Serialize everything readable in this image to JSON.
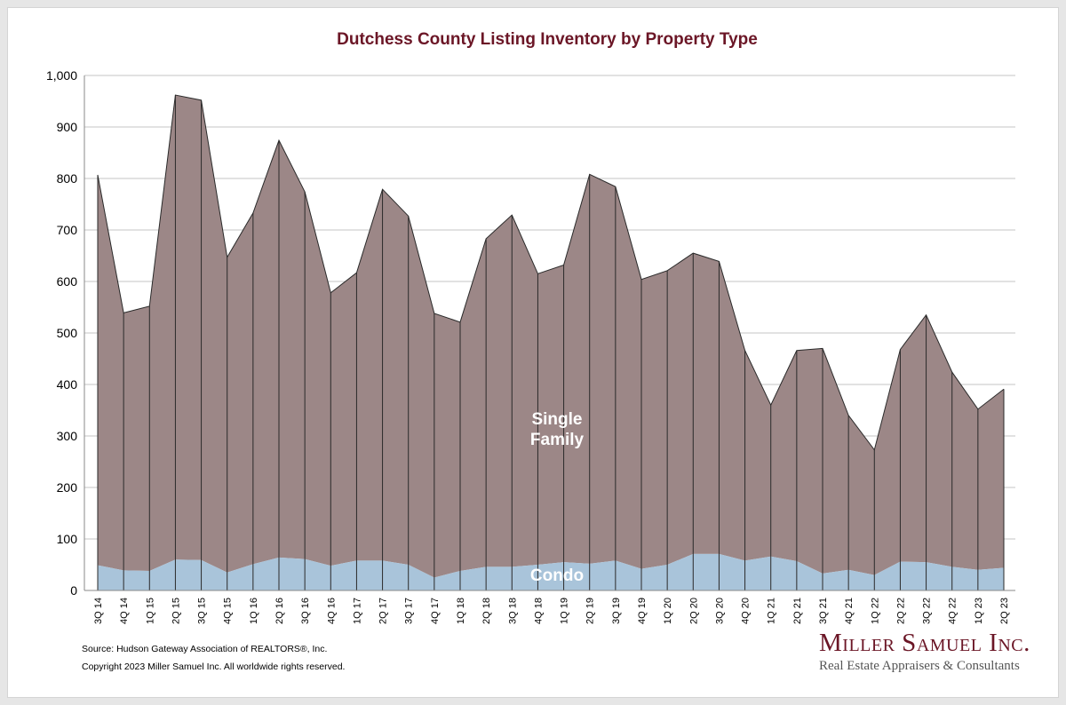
{
  "chart_data": {
    "type": "area",
    "title": "Dutchess County Listing Inventory by Property Type",
    "xlabel": "",
    "ylabel": "",
    "ylim": [
      0,
      1000
    ],
    "yticks": [
      "0",
      "100",
      "200",
      "300",
      "400",
      "500",
      "600",
      "700",
      "800",
      "900",
      "1,000"
    ],
    "stacked": true,
    "grid": true,
    "categories": [
      "3Q 14",
      "4Q 14",
      "1Q 15",
      "2Q 15",
      "3Q 15",
      "4Q 15",
      "1Q 16",
      "2Q 16",
      "3Q 16",
      "4Q 16",
      "1Q 17",
      "2Q 17",
      "3Q 17",
      "4Q 17",
      "1Q 18",
      "2Q 18",
      "3Q 18",
      "4Q 18",
      "1Q 19",
      "2Q 19",
      "3Q 19",
      "4Q 19",
      "1Q 20",
      "2Q 20",
      "3Q 20",
      "4Q 20",
      "1Q 21",
      "2Q 21",
      "3Q 21",
      "4Q 21",
      "1Q 22",
      "2Q 22",
      "3Q 22",
      "4Q 22",
      "1Q 23",
      "2Q 23"
    ],
    "series": [
      {
        "name": "Condo",
        "color": "#a9c4da",
        "values": [
          49,
          39,
          38,
          60,
          59,
          35,
          51,
          64,
          61,
          48,
          58,
          58,
          50,
          25,
          38,
          46,
          46,
          50,
          55,
          52,
          58,
          42,
          50,
          71,
          71,
          58,
          66,
          57,
          33,
          40,
          30,
          56,
          55,
          46,
          40,
          44
        ]
      },
      {
        "name": "Single Family",
        "color": "#9c8787",
        "values": [
          758,
          500,
          514,
          902,
          893,
          612,
          682,
          810,
          713,
          530,
          559,
          721,
          677,
          513,
          483,
          637,
          683,
          565,
          577,
          756,
          726,
          562,
          571,
          584,
          568,
          408,
          294,
          409,
          437,
          300,
          243,
          412,
          480,
          378,
          312,
          347
        ]
      }
    ],
    "annotations": {
      "single_family_label_line1": "Single",
      "single_family_label_line2": "Family",
      "condo_label": "Condo"
    }
  },
  "footer": {
    "source": "Source: Hudson Gateway Association of REALTORS®, Inc.",
    "copyright": "Copyright 2023 Miller Samuel Inc.  All worldwide rights reserved."
  },
  "logo": {
    "name": "Miller Samuel Inc.",
    "tagline": "Real Estate Appraisers & Consultants"
  }
}
